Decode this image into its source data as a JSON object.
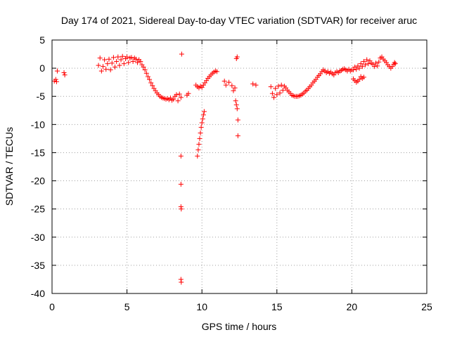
{
  "chart_data": {
    "type": "scatter",
    "title": "Day 174 of 2021, Sidereal Day-to-day VTEC variation (SDTVAR) for receiver aruc",
    "xlabel": "GPS time / hours",
    "ylabel": "SDTVAR / TECUs",
    "xlim": [
      0,
      25
    ],
    "ylim": [
      -40,
      5
    ],
    "xticks": [
      0,
      5,
      10,
      15,
      20,
      25
    ],
    "yticks": [
      5,
      0,
      -5,
      -10,
      -15,
      -20,
      -25,
      -30,
      -35,
      -40
    ],
    "grid": true,
    "marker": "+",
    "color": "#ff0000",
    "series": [
      {
        "name": "SDTVAR",
        "points": [
          [
            0.15,
            -2.3
          ],
          [
            0.25,
            -2.0
          ],
          [
            0.3,
            -2.4
          ],
          [
            0.35,
            -0.5
          ],
          [
            0.8,
            -0.8
          ],
          [
            0.85,
            -1.2
          ],
          [
            3.1,
            0.5
          ],
          [
            3.2,
            1.8
          ],
          [
            3.3,
            -0.5
          ],
          [
            3.4,
            0.3
          ],
          [
            3.5,
            1.5
          ],
          [
            3.6,
            -0.2
          ],
          [
            3.7,
            0.8
          ],
          [
            3.8,
            1.6
          ],
          [
            3.9,
            -0.3
          ],
          [
            4.0,
            0.9
          ],
          [
            4.1,
            1.9
          ],
          [
            4.2,
            0.2
          ],
          [
            4.3,
            1.2
          ],
          [
            4.4,
            2.0
          ],
          [
            4.5,
            0.5
          ],
          [
            4.6,
            1.5
          ],
          [
            4.7,
            2.1
          ],
          [
            4.8,
            0.8
          ],
          [
            4.9,
            1.7
          ],
          [
            5.0,
            2.0
          ],
          [
            5.1,
            1.0
          ],
          [
            5.2,
            1.8
          ],
          [
            5.3,
            1.9
          ],
          [
            5.4,
            1.2
          ],
          [
            5.5,
            1.8
          ],
          [
            5.6,
            1.6
          ],
          [
            5.7,
            1.0
          ],
          [
            5.8,
            1.5
          ],
          [
            5.9,
            1.2
          ],
          [
            6.0,
            0.6
          ],
          [
            6.1,
            0.2
          ],
          [
            6.2,
            -0.3
          ],
          [
            6.3,
            -0.9
          ],
          [
            6.4,
            -1.5
          ],
          [
            6.5,
            -2.0
          ],
          [
            6.6,
            -2.6
          ],
          [
            6.7,
            -3.1
          ],
          [
            6.8,
            -3.6
          ],
          [
            6.9,
            -4.0
          ],
          [
            7.0,
            -4.4
          ],
          [
            7.1,
            -4.7
          ],
          [
            7.2,
            -5.0
          ],
          [
            7.3,
            -5.2
          ],
          [
            7.4,
            -5.3
          ],
          [
            7.5,
            -5.4
          ],
          [
            7.6,
            -5.5
          ],
          [
            7.7,
            -5.4
          ],
          [
            7.8,
            -5.6
          ],
          [
            7.9,
            -5.3
          ],
          [
            8.0,
            -5.7
          ],
          [
            8.1,
            -5.5
          ],
          [
            8.2,
            -5.0
          ],
          [
            8.3,
            -4.7
          ],
          [
            8.4,
            -5.8
          ],
          [
            8.5,
            -4.6
          ],
          [
            8.6,
            -5.2
          ],
          [
            8.65,
            2.5
          ],
          [
            8.6,
            -15.6
          ],
          [
            8.6,
            -20.6
          ],
          [
            8.6,
            -24.6
          ],
          [
            8.62,
            -25.0
          ],
          [
            8.6,
            -37.5
          ],
          [
            8.62,
            -38.0
          ],
          [
            9.0,
            -4.8
          ],
          [
            9.1,
            -4.5
          ],
          [
            9.6,
            -3.0
          ],
          [
            9.7,
            -3.3
          ],
          [
            9.8,
            -3.5
          ],
          [
            9.9,
            -3.2
          ],
          [
            10.0,
            -3.4
          ],
          [
            10.1,
            -3.0
          ],
          [
            10.2,
            -2.6
          ],
          [
            10.3,
            -2.2
          ],
          [
            10.4,
            -1.8
          ],
          [
            10.5,
            -1.5
          ],
          [
            10.6,
            -1.2
          ],
          [
            10.7,
            -0.9
          ],
          [
            10.8,
            -0.7
          ],
          [
            10.9,
            -0.5
          ],
          [
            11.0,
            -0.6
          ],
          [
            9.7,
            -15.6
          ],
          [
            9.75,
            -14.5
          ],
          [
            9.8,
            -13.5
          ],
          [
            9.85,
            -12.5
          ],
          [
            9.9,
            -11.5
          ],
          [
            9.95,
            -10.5
          ],
          [
            10.0,
            -9.7
          ],
          [
            10.05,
            -9.0
          ],
          [
            10.1,
            -8.3
          ],
          [
            10.15,
            -7.7
          ],
          [
            11.5,
            -2.3
          ],
          [
            11.6,
            -3.0
          ],
          [
            11.8,
            -2.5
          ],
          [
            12.0,
            -3.1
          ],
          [
            12.1,
            -4.0
          ],
          [
            12.2,
            -3.5
          ],
          [
            12.25,
            -5.8
          ],
          [
            12.3,
            -6.5
          ],
          [
            12.35,
            -7.2
          ],
          [
            12.4,
            -9.2
          ],
          [
            12.4,
            -12.0
          ],
          [
            12.3,
            1.7
          ],
          [
            12.35,
            2.0
          ],
          [
            13.4,
            -2.8
          ],
          [
            13.6,
            -3.0
          ],
          [
            14.6,
            -3.3
          ],
          [
            14.7,
            -4.5
          ],
          [
            14.8,
            -5.2
          ],
          [
            14.9,
            -3.6
          ],
          [
            15.0,
            -4.7
          ],
          [
            15.1,
            -3.2
          ],
          [
            15.2,
            -4.4
          ],
          [
            15.3,
            -3.0
          ],
          [
            15.4,
            -3.9
          ],
          [
            15.5,
            -3.2
          ],
          [
            15.6,
            -3.5
          ],
          [
            15.7,
            -3.9
          ],
          [
            15.8,
            -4.2
          ],
          [
            15.9,
            -4.5
          ],
          [
            16.0,
            -4.8
          ],
          [
            16.1,
            -4.9
          ],
          [
            16.2,
            -5.0
          ],
          [
            16.3,
            -5.0
          ],
          [
            16.4,
            -5.0
          ],
          [
            16.5,
            -4.9
          ],
          [
            16.6,
            -4.8
          ],
          [
            16.7,
            -4.6
          ],
          [
            16.8,
            -4.4
          ],
          [
            16.9,
            -4.1
          ],
          [
            17.0,
            -3.9
          ],
          [
            17.1,
            -3.6
          ],
          [
            17.2,
            -3.3
          ],
          [
            17.3,
            -3.0
          ],
          [
            17.4,
            -2.6
          ],
          [
            17.5,
            -2.3
          ],
          [
            17.6,
            -2.0
          ],
          [
            17.7,
            -1.6
          ],
          [
            17.8,
            -1.3
          ],
          [
            17.9,
            -1.0
          ],
          [
            18.0,
            -0.6
          ],
          [
            18.1,
            -0.3
          ],
          [
            18.2,
            -0.5
          ],
          [
            18.3,
            -0.8
          ],
          [
            18.4,
            -0.6
          ],
          [
            18.5,
            -0.9
          ],
          [
            18.6,
            -0.7
          ],
          [
            18.7,
            -1.0
          ],
          [
            18.8,
            -1.2
          ],
          [
            18.9,
            -0.8
          ],
          [
            19.0,
            -0.6
          ],
          [
            19.1,
            -0.8
          ],
          [
            19.2,
            -0.5
          ],
          [
            19.3,
            -0.4
          ],
          [
            19.4,
            -0.2
          ],
          [
            19.5,
            -0.1
          ],
          [
            19.6,
            -0.3
          ],
          [
            19.7,
            -0.5
          ],
          [
            19.8,
            -0.2
          ],
          [
            19.9,
            -0.5
          ],
          [
            20.0,
            -0.3
          ],
          [
            20.1,
            -1.9
          ],
          [
            20.2,
            -2.2
          ],
          [
            20.3,
            -2.5
          ],
          [
            20.4,
            -2.3
          ],
          [
            20.5,
            -2.0
          ],
          [
            20.6,
            -1.5
          ],
          [
            20.7,
            -1.8
          ],
          [
            20.8,
            -1.6
          ],
          [
            20.1,
            -0.3
          ],
          [
            20.2,
            0.2
          ],
          [
            20.3,
            -0.2
          ],
          [
            20.4,
            0.4
          ],
          [
            20.5,
            0.0
          ],
          [
            20.6,
            0.8
          ],
          [
            20.7,
            0.3
          ],
          [
            20.8,
            1.2
          ],
          [
            20.9,
            0.6
          ],
          [
            21.0,
            1.5
          ],
          [
            21.1,
            0.8
          ],
          [
            21.2,
            1.3
          ],
          [
            21.3,
            0.9
          ],
          [
            21.4,
            0.7
          ],
          [
            21.5,
            0.3
          ],
          [
            21.6,
            0.9
          ],
          [
            21.7,
            0.4
          ],
          [
            21.8,
            1.1
          ],
          [
            21.9,
            1.8
          ],
          [
            22.0,
            2.0
          ],
          [
            22.1,
            1.6
          ],
          [
            22.2,
            1.3
          ],
          [
            22.3,
            1.0
          ],
          [
            22.4,
            0.6
          ],
          [
            22.5,
            0.3
          ],
          [
            22.6,
            0.0
          ],
          [
            22.7,
            0.3
          ],
          [
            22.8,
            0.7
          ],
          [
            22.85,
            1.0
          ],
          [
            22.9,
            0.8
          ]
        ]
      }
    ]
  }
}
